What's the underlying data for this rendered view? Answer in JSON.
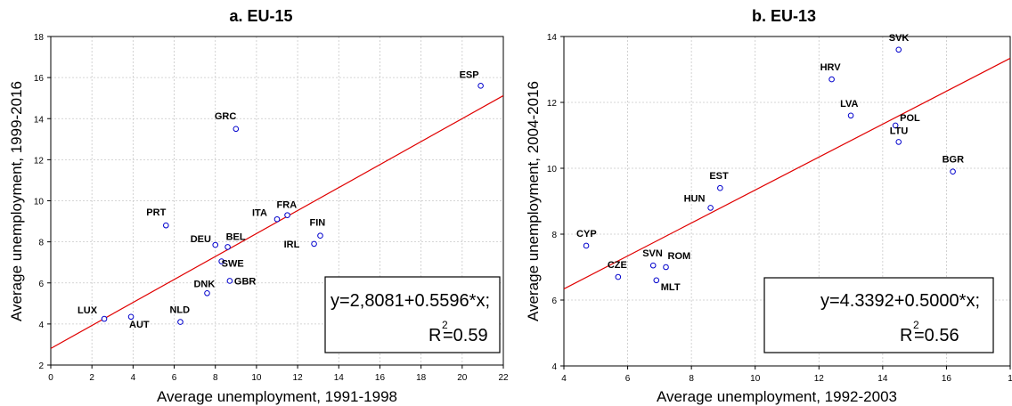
{
  "chart_data": [
    {
      "type": "scatter",
      "title": "a. EU-15",
      "xlabel": "Average unemployment, 1991-1998",
      "ylabel": "Average unemployment, 1999-2016",
      "xlim": [
        0,
        22
      ],
      "ylim": [
        2,
        18
      ],
      "xticks": [
        "0",
        "2",
        "4",
        "6",
        "8",
        "10",
        "12",
        "14",
        "16",
        "18",
        "20",
        "22"
      ],
      "yticks": [
        "2",
        "4",
        "6",
        "8",
        "10",
        "12",
        "14",
        "16",
        "18"
      ],
      "grid": true,
      "points": [
        {
          "label": "ESP",
          "x": 20.9,
          "y": 15.6
        },
        {
          "label": "GRC",
          "x": 9.0,
          "y": 13.5
        },
        {
          "label": "PRT",
          "x": 5.6,
          "y": 8.8
        },
        {
          "label": "ITA",
          "x": 11.0,
          "y": 9.1
        },
        {
          "label": "FRA",
          "x": 11.5,
          "y": 9.3
        },
        {
          "label": "FIN",
          "x": 13.1,
          "y": 8.3
        },
        {
          "label": "IRL",
          "x": 12.8,
          "y": 7.9
        },
        {
          "label": "DEU",
          "x": 8.0,
          "y": 7.85
        },
        {
          "label": "BEL",
          "x": 8.6,
          "y": 7.75
        },
        {
          "label": "SWE",
          "x": 8.3,
          "y": 7.05
        },
        {
          "label": "GBR",
          "x": 8.7,
          "y": 6.1
        },
        {
          "label": "DNK",
          "x": 7.6,
          "y": 5.5
        },
        {
          "label": "NLD",
          "x": 6.3,
          "y": 4.1
        },
        {
          "label": "LUX",
          "x": 2.6,
          "y": 4.25
        },
        {
          "label": "AUT",
          "x": 3.9,
          "y": 4.35
        }
      ],
      "regression": {
        "intercept": 2.8081,
        "slope": 0.5596
      },
      "annotation": {
        "equation": "y=2,8081+0.5596*x;",
        "r_prefix": "R",
        "r_sup": "2",
        "r_value": "=0.59"
      }
    },
    {
      "type": "scatter",
      "title": "b. EU-13",
      "xlabel": "Average unemployment, 1992-2003",
      "ylabel": "Average unemployment, 2004-2016",
      "xlim": [
        4,
        18
      ],
      "ylim": [
        4,
        14
      ],
      "xticks": [
        "4",
        "6",
        "8",
        "10",
        "12",
        "14",
        "16",
        "1"
      ],
      "yticks": [
        "4",
        "6",
        "8",
        "10",
        "12",
        "14"
      ],
      "grid": true,
      "points": [
        {
          "label": "SVK",
          "x": 14.5,
          "y": 13.6
        },
        {
          "label": "HRV",
          "x": 12.4,
          "y": 12.7
        },
        {
          "label": "LVA",
          "x": 13.0,
          "y": 11.6
        },
        {
          "label": "POL",
          "x": 14.4,
          "y": 11.3
        },
        {
          "label": "LTU",
          "x": 14.5,
          "y": 10.8
        },
        {
          "label": "BGR",
          "x": 16.2,
          "y": 9.9
        },
        {
          "label": "EST",
          "x": 8.9,
          "y": 9.4
        },
        {
          "label": "HUN",
          "x": 8.6,
          "y": 8.8
        },
        {
          "label": "CYP",
          "x": 4.7,
          "y": 7.65
        },
        {
          "label": "SVN",
          "x": 6.8,
          "y": 7.05
        },
        {
          "label": "ROM",
          "x": 7.2,
          "y": 7.0
        },
        {
          "label": "CZE",
          "x": 5.7,
          "y": 6.7
        },
        {
          "label": "MLT",
          "x": 6.9,
          "y": 6.6
        }
      ],
      "regression": {
        "intercept": 4.3392,
        "slope": 0.5
      },
      "annotation": {
        "equation": "y=4.3392+0.5000*x;",
        "r_prefix": "R",
        "r_sup": "2",
        "r_value": "=0.56"
      }
    }
  ]
}
